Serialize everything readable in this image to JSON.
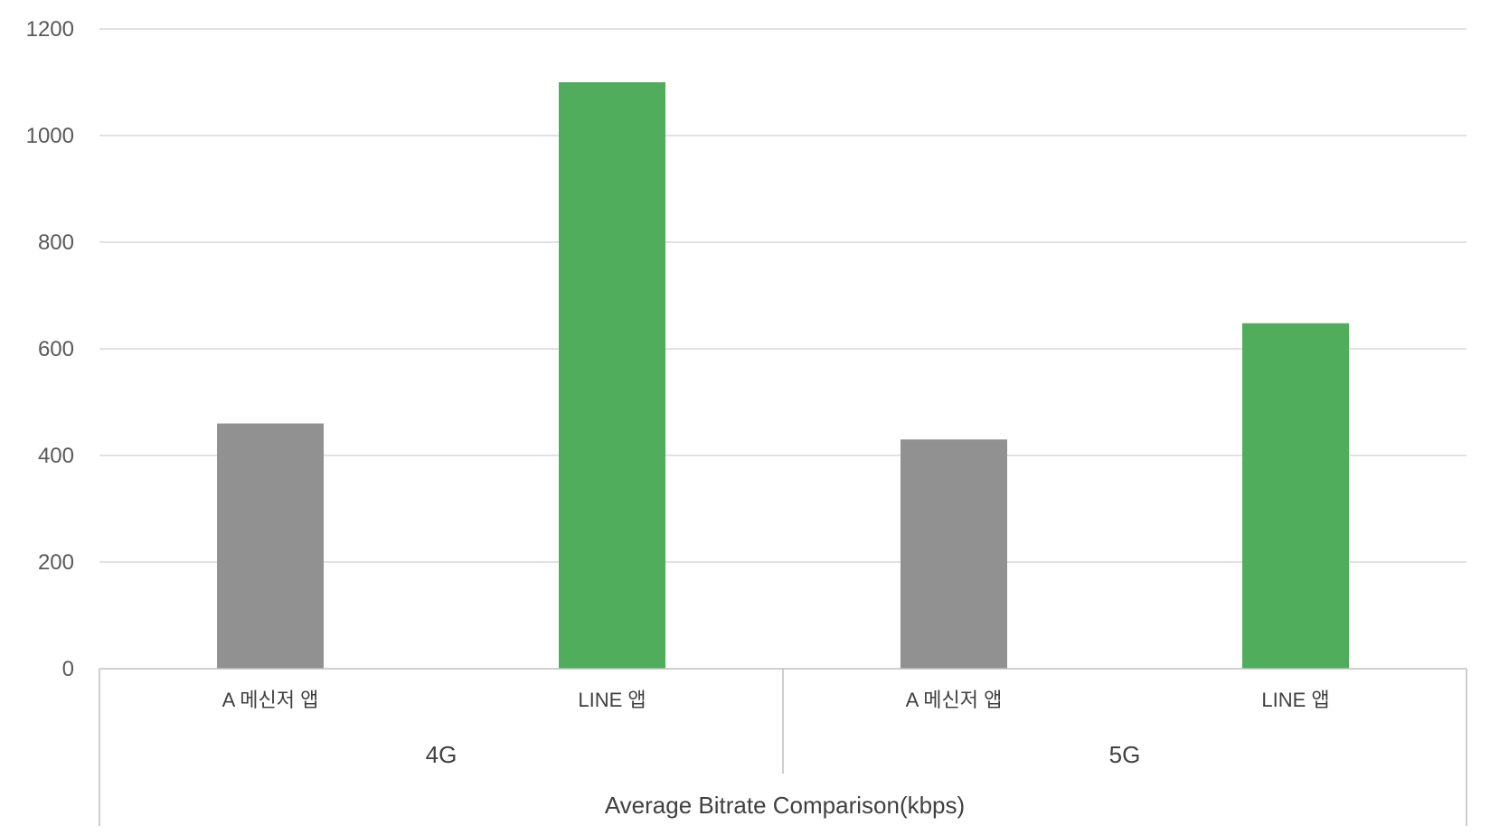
{
  "chart_data": {
    "type": "bar",
    "title": "",
    "xlabel": "Average Bitrate Comparison(kbps)",
    "ylabel": "",
    "ylim": [
      0,
      1200
    ],
    "yticks": [
      0,
      200,
      400,
      600,
      800,
      1000,
      1200
    ],
    "grid": true,
    "legend": "none",
    "groups": [
      {
        "name": "4G",
        "categories": [
          "A 메신저 앱",
          "LINE 앱"
        ],
        "values": [
          460,
          1100
        ]
      },
      {
        "name": "5G",
        "categories": [
          "A 메신저 앱",
          "LINE 앱"
        ],
        "values": [
          430,
          648
        ]
      }
    ],
    "colors": {
      "A 메신저 앱": "#919191",
      "LINE 앱": "#4fad5b"
    }
  }
}
